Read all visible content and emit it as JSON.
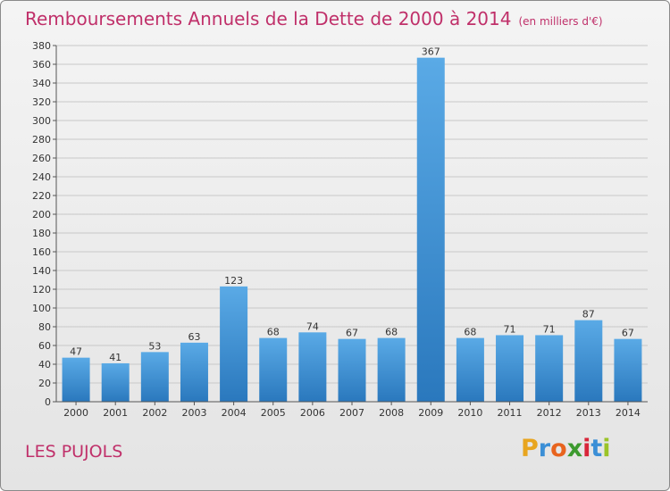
{
  "title": "Remboursements Annuels de la Dette de 2000 à 2014",
  "unit": "(en milliers d'€)",
  "commune": "LES PUJOLS",
  "logo": {
    "letters": [
      "P",
      "r",
      "o",
      "x",
      "i",
      "t",
      "i"
    ],
    "colors": [
      "#e8a51f",
      "#3b8fd6",
      "#e8641e",
      "#3c9a2e",
      "#d8263a",
      "#3b8fd6",
      "#9bc428"
    ]
  },
  "colors": {
    "title": "#c0306a",
    "bar_light": "#5aaae6",
    "bar_dark": "#2a78bd",
    "grid": "#c8c8c8"
  },
  "chart_data": {
    "type": "bar",
    "title": "Remboursements Annuels de la Dette de 2000 à 2014",
    "ylabel": "(en milliers d'€)",
    "xlabel": "",
    "categories": [
      "2000",
      "2001",
      "2002",
      "2003",
      "2004",
      "2005",
      "2006",
      "2007",
      "2008",
      "2009",
      "2010",
      "2011",
      "2012",
      "2013",
      "2014"
    ],
    "values": [
      47,
      41,
      53,
      63,
      123,
      68,
      74,
      67,
      68,
      367,
      68,
      71,
      71,
      87,
      67
    ],
    "ylim": [
      0,
      380
    ],
    "yticks": [
      0,
      20,
      40,
      60,
      80,
      100,
      120,
      140,
      160,
      180,
      200,
      220,
      240,
      260,
      280,
      300,
      320,
      340,
      360,
      380
    ],
    "grid": true
  }
}
